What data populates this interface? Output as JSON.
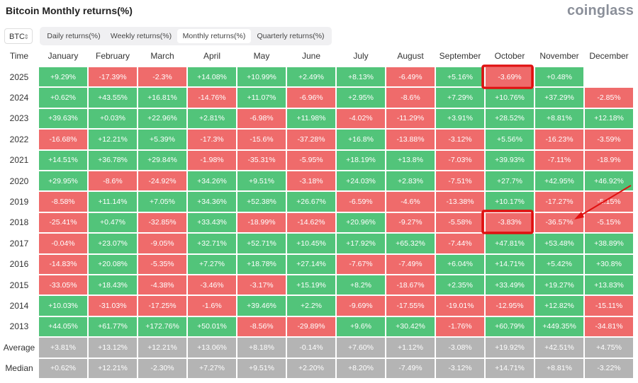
{
  "header": {
    "title": "Bitcoin Monthly returns(%)",
    "logo": "coinglass"
  },
  "controls": {
    "asset": "BTC",
    "tabs": [
      "Daily returns(%)",
      "Weekly returns(%)",
      "Monthly returns(%)",
      "Quarterly returns(%)"
    ]
  },
  "table": {
    "columns": [
      "Time",
      "January",
      "February",
      "March",
      "April",
      "May",
      "June",
      "July",
      "August",
      "September",
      "October",
      "November",
      "December"
    ],
    "rows": [
      [
        "2025",
        "+9.29%",
        "-17.39%",
        "-2.3%",
        "+14.08%",
        "+10.99%",
        "+2.49%",
        "+8.13%",
        "-6.49%",
        "+5.16%",
        "-3.69%",
        "+0.48%",
        null
      ],
      [
        "2024",
        "+0.62%",
        "+43.55%",
        "+16.81%",
        "-14.76%",
        "+11.07%",
        "-6.96%",
        "+2.95%",
        "-8.6%",
        "+7.29%",
        "+10.76%",
        "+37.29%",
        "-2.85%"
      ],
      [
        "2023",
        "+39.63%",
        "+0.03%",
        "+22.96%",
        "+2.81%",
        "-6.98%",
        "+11.98%",
        "-4.02%",
        "-11.29%",
        "+3.91%",
        "+28.52%",
        "+8.81%",
        "+12.18%"
      ],
      [
        "2022",
        "-16.68%",
        "+12.21%",
        "+5.39%",
        "-17.3%",
        "-15.6%",
        "-37.28%",
        "+16.8%",
        "-13.88%",
        "-3.12%",
        "+5.56%",
        "-16.23%",
        "-3.59%"
      ],
      [
        "2021",
        "+14.51%",
        "+36.78%",
        "+29.84%",
        "-1.98%",
        "-35.31%",
        "-5.95%",
        "+18.19%",
        "+13.8%",
        "-7.03%",
        "+39.93%",
        "-7.11%",
        "-18.9%"
      ],
      [
        "2020",
        "+29.95%",
        "-8.6%",
        "-24.92%",
        "+34.26%",
        "+9.51%",
        "-3.18%",
        "+24.03%",
        "+2.83%",
        "-7.51%",
        "+27.7%",
        "+42.95%",
        "+46.92%"
      ],
      [
        "2019",
        "-8.58%",
        "+11.14%",
        "+7.05%",
        "+34.36%",
        "+52.38%",
        "+26.67%",
        "-6.59%",
        "-4.6%",
        "-13.38%",
        "+10.17%",
        "-17.27%",
        "-5.15%"
      ],
      [
        "2018",
        "-25.41%",
        "+0.47%",
        "-32.85%",
        "+33.43%",
        "-18.99%",
        "-14.62%",
        "+20.96%",
        "-9.27%",
        "-5.58%",
        "-3.83%",
        "-36.57%",
        "-5.15%"
      ],
      [
        "2017",
        "-0.04%",
        "+23.07%",
        "-9.05%",
        "+32.71%",
        "+52.71%",
        "+10.45%",
        "+17.92%",
        "+65.32%",
        "-7.44%",
        "+47.81%",
        "+53.48%",
        "+38.89%"
      ],
      [
        "2016",
        "-14.83%",
        "+20.08%",
        "-5.35%",
        "+7.27%",
        "+18.78%",
        "+27.14%",
        "-7.67%",
        "-7.49%",
        "+6.04%",
        "+14.71%",
        "+5.42%",
        "+30.8%"
      ],
      [
        "2015",
        "-33.05%",
        "+18.43%",
        "-4.38%",
        "-3.46%",
        "-3.17%",
        "+15.19%",
        "+8.2%",
        "-18.67%",
        "+2.35%",
        "+33.49%",
        "+19.27%",
        "+13.83%"
      ],
      [
        "2014",
        "+10.03%",
        "-31.03%",
        "-17.25%",
        "-1.6%",
        "+39.46%",
        "+2.2%",
        "-9.69%",
        "-17.55%",
        "-19.01%",
        "-12.95%",
        "+12.82%",
        "-15.11%"
      ],
      [
        "2013",
        "+44.05%",
        "+61.77%",
        "+172.76%",
        "+50.01%",
        "-8.56%",
        "-29.89%",
        "+9.6%",
        "+30.42%",
        "-1.76%",
        "+60.79%",
        "+449.35%",
        "-34.81%"
      ]
    ],
    "summary_rows": [
      [
        "Average",
        "+3.81%",
        "+13.12%",
        "+12.21%",
        "+13.06%",
        "+8.18%",
        "-0.14%",
        "+7.60%",
        "+1.12%",
        "-3.08%",
        "+19.92%",
        "+42.51%",
        "+4.75%"
      ],
      [
        "Median",
        "+0.62%",
        "+12.21%",
        "-2.30%",
        "+7.27%",
        "+9.51%",
        "+2.20%",
        "+8.20%",
        "-7.49%",
        "-3.12%",
        "+14.71%",
        "+8.81%",
        "-3.22%"
      ]
    ]
  }
}
